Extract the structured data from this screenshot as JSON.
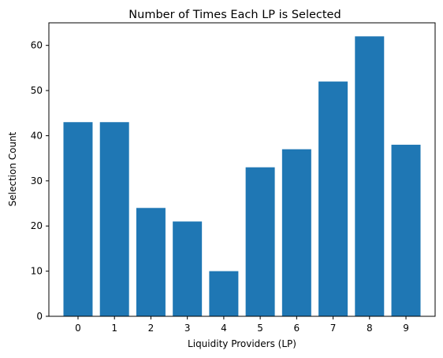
{
  "chart_data": {
    "type": "bar",
    "title": "Number of Times Each LP is Selected",
    "xlabel": "Liquidity Providers (LP)",
    "ylabel": "Selection Count",
    "categories": [
      "0",
      "1",
      "2",
      "3",
      "4",
      "5",
      "6",
      "7",
      "8",
      "9"
    ],
    "values": [
      43,
      43,
      24,
      21,
      10,
      33,
      37,
      52,
      62,
      38
    ],
    "ylim": [
      0,
      65
    ],
    "yticks": [
      0,
      10,
      20,
      30,
      40,
      50,
      60
    ],
    "bar_color": "#1f77b4",
    "grid": false,
    "legend": "none"
  }
}
